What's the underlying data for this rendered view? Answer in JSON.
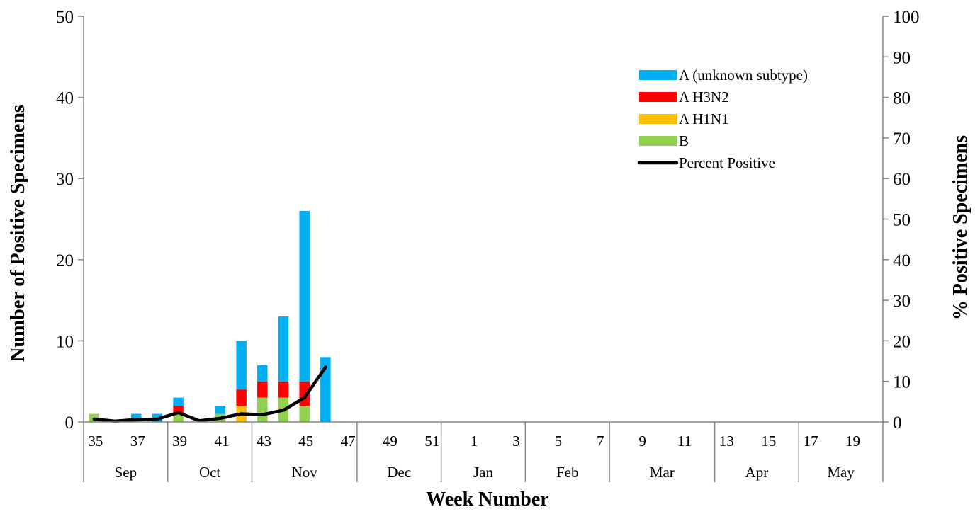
{
  "chart_data": {
    "type": "bar",
    "stacked": true,
    "xlabel": "Week Number",
    "ylabel": "Number of Positive Specimens",
    "y2label": "% Positive Specimens",
    "ylim": [
      0,
      50
    ],
    "y2lim": [
      0,
      100
    ],
    "yticks": [
      "0",
      "10",
      "20",
      "30",
      "40",
      "50"
    ],
    "y2ticks": [
      "0",
      "10",
      "20",
      "30",
      "40",
      "50",
      "60",
      "70",
      "80",
      "90",
      "100"
    ],
    "week_labels": [
      "35",
      "37",
      "39",
      "41",
      "43",
      "45",
      "47",
      "49",
      "51",
      "1",
      "3",
      "5",
      "7",
      "9",
      "11",
      "13",
      "15",
      "17",
      "19"
    ],
    "months": [
      "Sep",
      "Oct",
      "Nov",
      "Dec",
      "Jan",
      "Feb",
      "Mar",
      "Apr",
      "May"
    ],
    "categories": [
      "35",
      "36",
      "37",
      "38",
      "39",
      "40",
      "41",
      "42",
      "43",
      "44",
      "45",
      "46",
      "47",
      "48",
      "49",
      "50",
      "51",
      "52",
      "1",
      "2",
      "3",
      "4",
      "5",
      "6",
      "7",
      "8",
      "9",
      "10",
      "11",
      "12",
      "13",
      "14",
      "15",
      "16",
      "17",
      "18",
      "19",
      "20"
    ],
    "series": [
      {
        "name": "B",
        "color": "#92d050",
        "values": [
          1,
          0,
          0,
          0,
          1,
          0,
          1,
          0,
          3,
          3,
          2,
          0,
          0,
          0,
          0,
          0,
          0,
          0,
          0,
          0,
          0,
          0,
          0,
          0,
          0,
          0,
          0,
          0,
          0,
          0,
          0,
          0,
          0,
          0,
          0,
          0,
          0,
          0
        ]
      },
      {
        "name": "A H1N1",
        "color": "#ffc000",
        "values": [
          0,
          0,
          0,
          0,
          0,
          0,
          0,
          2,
          0,
          0,
          0,
          0,
          0,
          0,
          0,
          0,
          0,
          0,
          0,
          0,
          0,
          0,
          0,
          0,
          0,
          0,
          0,
          0,
          0,
          0,
          0,
          0,
          0,
          0,
          0,
          0,
          0,
          0
        ]
      },
      {
        "name": "A H3N2",
        "color": "#ff0000",
        "values": [
          0,
          0,
          0,
          0,
          1,
          0,
          0,
          2,
          2,
          2,
          3,
          0,
          0,
          0,
          0,
          0,
          0,
          0,
          0,
          0,
          0,
          0,
          0,
          0,
          0,
          0,
          0,
          0,
          0,
          0,
          0,
          0,
          0,
          0,
          0,
          0,
          0,
          0
        ]
      },
      {
        "name": "A (unknown subtype)",
        "color": "#00b0f0",
        "values": [
          0,
          0,
          1,
          1,
          1,
          0,
          1,
          6,
          2,
          8,
          21,
          8,
          0,
          0,
          0,
          0,
          0,
          0,
          0,
          0,
          0,
          0,
          0,
          0,
          0,
          0,
          0,
          0,
          0,
          0,
          0,
          0,
          0,
          0,
          0,
          0,
          0,
          0
        ]
      }
    ],
    "line_series": {
      "name": "Percent Positive",
      "color": "#000000",
      "axis": "right",
      "values": [
        0.7,
        0.2,
        0.6,
        0.7,
        2.3,
        0.3,
        0.9,
        2.0,
        1.8,
        2.9,
        6.0,
        13.5
      ]
    },
    "legend": {
      "position": "top-right",
      "entries": [
        "A (unknown subtype)",
        "A H3N2",
        "A H1N1",
        "B",
        "Percent Positive"
      ]
    },
    "grid": false
  }
}
